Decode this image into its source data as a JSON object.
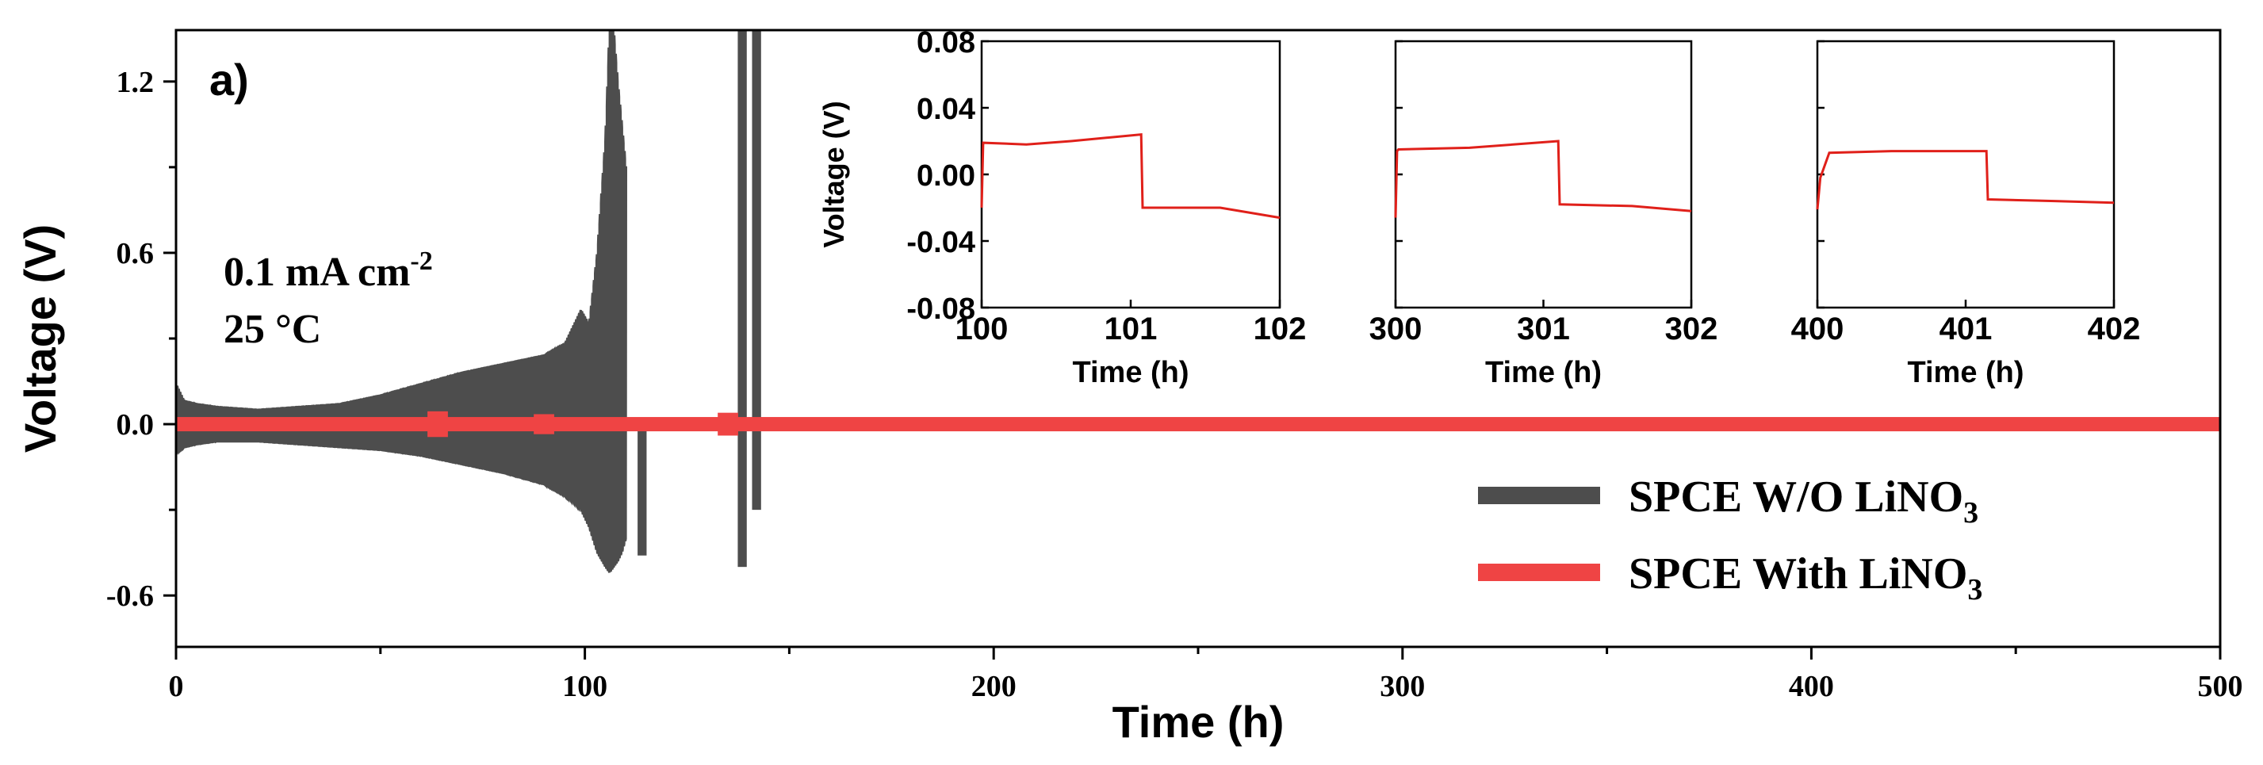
{
  "colors": {
    "without": "#4d4d4d",
    "with": "#ef4444",
    "inset_line": "#e0201a",
    "axis": "#000000"
  },
  "chart_data": [
    {
      "type": "line",
      "panel_label": "a)",
      "xlabel": "Time (h)",
      "ylabel": "Voltage (V)",
      "xlim": [
        0,
        500
      ],
      "ylim": [
        -0.78,
        1.38
      ],
      "x_ticks": [
        0,
        100,
        200,
        300,
        400,
        500
      ],
      "x_tick_labels": [
        "0",
        "100",
        "200",
        "300",
        "400",
        "500"
      ],
      "y_ticks": [
        -0.6,
        0.0,
        0.6,
        1.2
      ],
      "y_tick_labels": [
        "-0.6",
        "0.0",
        "0.6",
        "1.2"
      ],
      "annotation": {
        "current": "0.1 mA cm",
        "current_exp": "-2",
        "temperature": "25 °C"
      },
      "legend": {
        "position": "bottom-right",
        "entries": [
          {
            "name": "SPCE W/O LiNO",
            "sub": "3"
          },
          {
            "name": "SPCE With LiNO",
            "sub": "3"
          }
        ]
      },
      "series": [
        {
          "name": "SPCE W/O LiNO3",
          "envelope": {
            "t": [
              0,
              2,
              5,
              10,
              20,
              30,
              40,
              50,
              60,
              70,
              80,
              90,
              95,
              99,
              101,
              103,
              105,
              106,
              107,
              108,
              109,
              110
            ],
            "upper": [
              0.14,
              0.08,
              0.07,
              0.06,
              0.05,
              0.06,
              0.07,
              0.1,
              0.14,
              0.18,
              0.21,
              0.24,
              0.28,
              0.4,
              0.35,
              0.6,
              1.0,
              1.38,
              1.38,
              1.2,
              1.05,
              0.9
            ],
            "lower": [
              -0.1,
              -0.08,
              -0.07,
              -0.06,
              -0.06,
              -0.07,
              -0.08,
              -0.09,
              -0.11,
              -0.14,
              -0.17,
              -0.21,
              -0.25,
              -0.3,
              -0.36,
              -0.45,
              -0.5,
              -0.52,
              -0.5,
              -0.48,
              -0.45,
              -0.4
            ]
          },
          "spikes": [
            {
              "t": 114,
              "low": -0.46,
              "high": 0.02
            },
            {
              "t": 138.5,
              "low": -0.5,
              "high": 1.38
            },
            {
              "t": 142,
              "low": -0.3,
              "high": 1.38
            }
          ]
        },
        {
          "name": "SPCE With LiNO3",
          "band": {
            "x0": 0,
            "x1": 500,
            "upper": 0.025,
            "lower": -0.025
          },
          "bumps": [
            {
              "t": 64,
              "low": -0.045,
              "high": 0.045
            },
            {
              "t": 90,
              "low": -0.035,
              "high": 0.035
            },
            {
              "t": 135,
              "low": -0.04,
              "high": 0.04
            }
          ]
        }
      ]
    },
    {
      "type": "line",
      "inset": 1,
      "xlabel": "Time (h)",
      "ylabel": "Voltage (V)",
      "xlim": [
        100,
        102
      ],
      "ylim": [
        -0.08,
        0.08
      ],
      "x_ticks": [
        100,
        101,
        102
      ],
      "x_tick_labels": [
        "100",
        "101",
        "102"
      ],
      "y_ticks": [
        -0.08,
        -0.04,
        0.0,
        0.04,
        0.08
      ],
      "y_tick_labels": [
        "-0.08",
        "-0.04",
        "0.00",
        "0.04",
        "0.08"
      ],
      "series": [
        {
          "name": "SPCE With LiNO3",
          "x": [
            100,
            100.01,
            100.3,
            100.6,
            101.07,
            101.08,
            101.6,
            102
          ],
          "y": [
            -0.02,
            0.019,
            0.018,
            0.02,
            0.024,
            -0.02,
            -0.02,
            -0.026
          ]
        }
      ]
    },
    {
      "type": "line",
      "inset": 2,
      "xlabel": "Time (h)",
      "ylabel": "",
      "xlim": [
        300,
        302
      ],
      "ylim": [
        -0.08,
        0.08
      ],
      "x_ticks": [
        300,
        301,
        302
      ],
      "x_tick_labels": [
        "300",
        "301",
        "302"
      ],
      "y_ticks": [
        -0.08,
        -0.04,
        0.0,
        0.04,
        0.08
      ],
      "y_tick_labels": [],
      "series": [
        {
          "name": "SPCE With LiNO3",
          "x": [
            300,
            300.01,
            300.02,
            300.5,
            301.1,
            301.11,
            301.6,
            302
          ],
          "y": [
            -0.026,
            0.014,
            0.015,
            0.016,
            0.02,
            -0.018,
            -0.019,
            -0.022
          ]
        }
      ]
    },
    {
      "type": "line",
      "inset": 3,
      "xlabel": "Time (h)",
      "ylabel": "",
      "xlim": [
        400,
        402
      ],
      "ylim": [
        -0.08,
        0.08
      ],
      "x_ticks": [
        400,
        401,
        402
      ],
      "x_tick_labels": [
        "400",
        "401",
        "402"
      ],
      "y_ticks": [
        -0.08,
        -0.04,
        0.0,
        0.04,
        0.08
      ],
      "y_tick_labels": [],
      "series": [
        {
          "name": "SPCE With LiNO3",
          "x": [
            400,
            400.02,
            400.08,
            400.5,
            401.14,
            401.15,
            401.6,
            402
          ],
          "y": [
            -0.021,
            -0.002,
            0.013,
            0.014,
            0.014,
            -0.015,
            -0.016,
            -0.017
          ]
        }
      ]
    }
  ]
}
